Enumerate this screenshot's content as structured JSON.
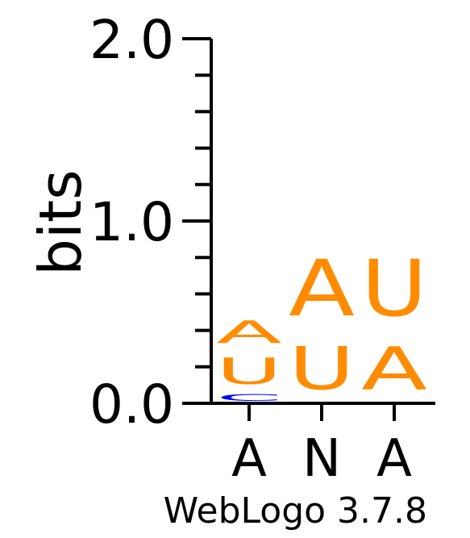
{
  "chart_data": {
    "type": "sequence-logo",
    "ylabel": "bits",
    "ylim": [
      0,
      2.0
    ],
    "y_ticks": [
      "0.0",
      "1.0",
      "2.0"
    ],
    "x_ticks": [
      "A",
      "N",
      "A"
    ],
    "footer": "WebLogo 3.7.8",
    "colors": {
      "A": "#ff8c00",
      "U": "#ff8c00",
      "C": "#0000ff",
      "G": "#228b22"
    },
    "stacks": [
      {
        "position": "A",
        "letters": [
          {
            "letter": "C",
            "bits": 0.06
          },
          {
            "letter": "U",
            "bits": 0.23
          },
          {
            "letter": "A",
            "bits": 0.2
          }
        ]
      },
      {
        "position": "N",
        "letters": [
          {
            "letter": "U",
            "bits": 0.38
          },
          {
            "letter": "A",
            "bits": 0.5
          }
        ]
      },
      {
        "position": "A",
        "letters": [
          {
            "letter": "A",
            "bits": 0.38
          },
          {
            "letter": "U",
            "bits": 0.5
          }
        ]
      }
    ]
  }
}
